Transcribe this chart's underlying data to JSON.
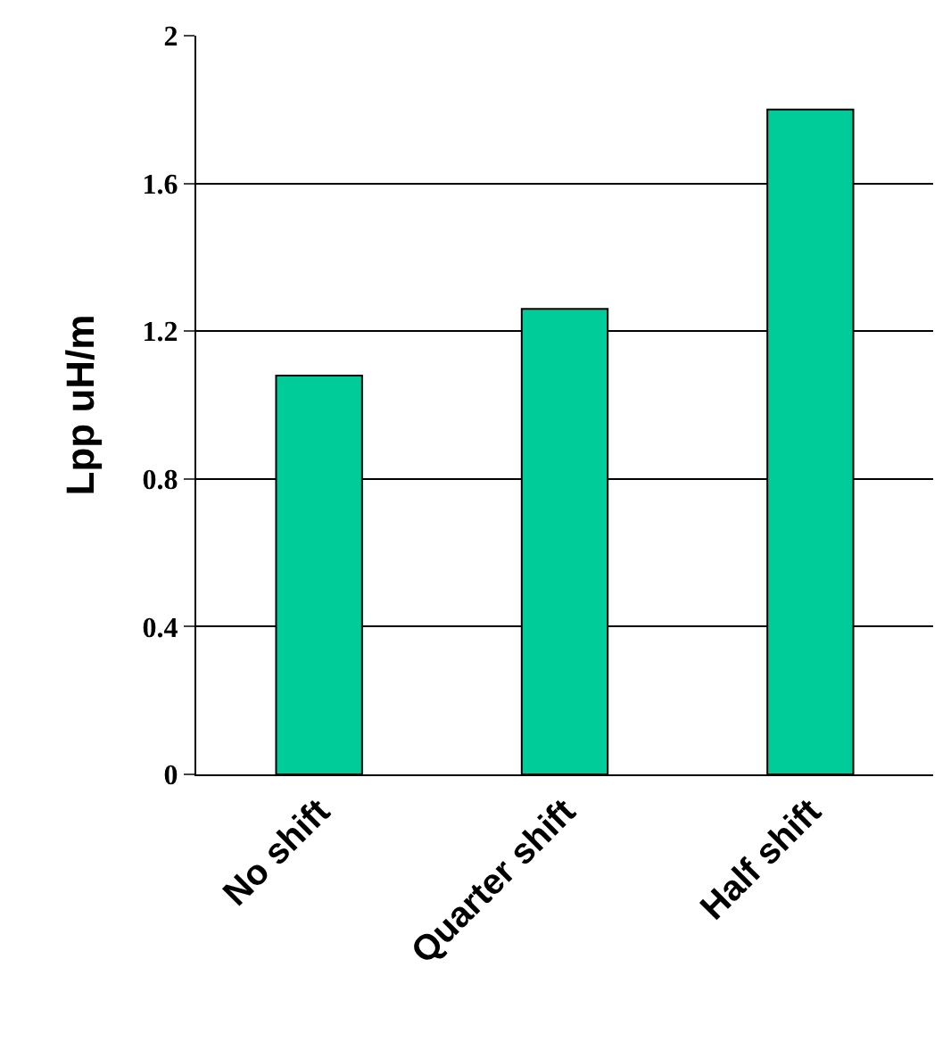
{
  "chart_data": {
    "type": "bar",
    "ylabel": "Lpp uH/m",
    "categories": [
      "No shift",
      "Quarter shift",
      "Half shift"
    ],
    "values": [
      1.08,
      1.26,
      1.8
    ],
    "color": "#00cc99",
    "ylim": [
      0,
      2
    ],
    "yticks": [
      0,
      0.4,
      0.8,
      1.2,
      1.6,
      2
    ],
    "grid": "y"
  }
}
